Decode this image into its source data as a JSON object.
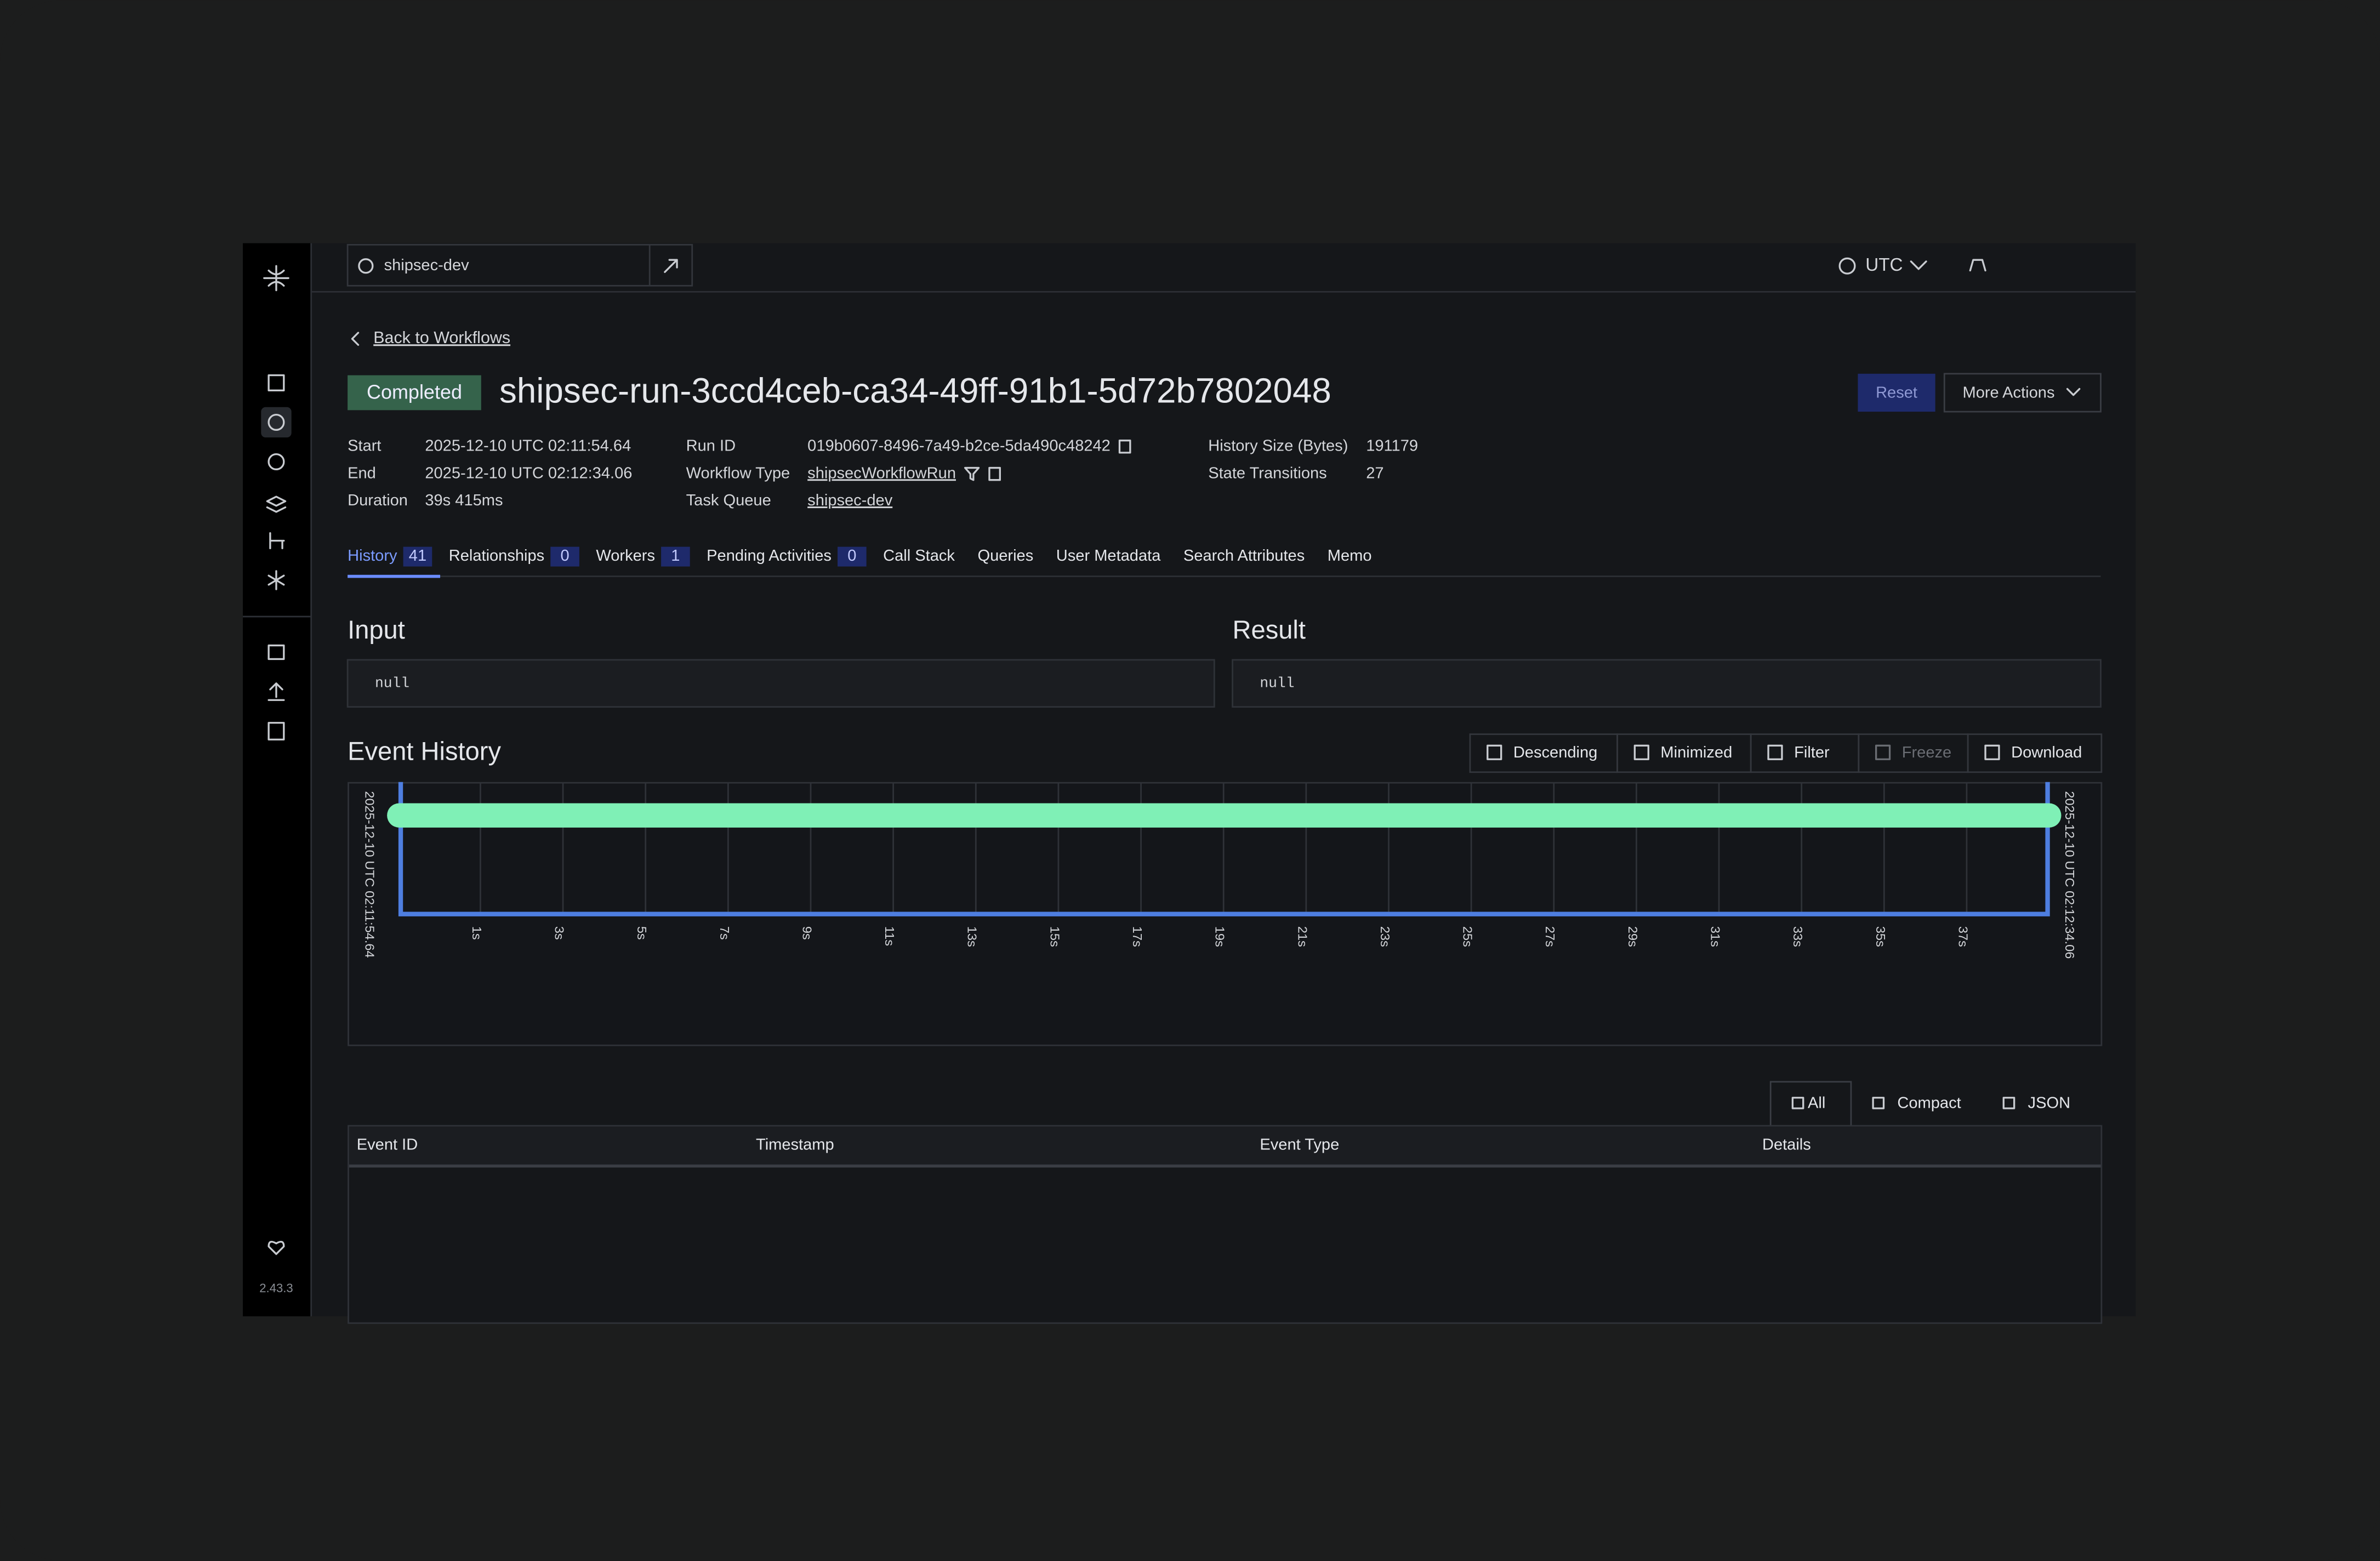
{
  "sidebar": {
    "version": "2.43.3"
  },
  "header": {
    "namespace": "shipsec-dev",
    "timezone": "UTC"
  },
  "workflow": {
    "back_link": "Back to Workflows",
    "status": "Completed",
    "title": "shipsec-run-3ccd4ceb-ca34-49ff-91b1-5d72b7802048",
    "actions": [
      "Reset",
      "More Actions"
    ],
    "details": [
      [
        {
          "label": "Start",
          "value": "2025-12-10 UTC 02:11:54.64"
        },
        {
          "label": "End",
          "value": "2025-12-10 UTC 02:12:34.06"
        },
        {
          "label": "Duration",
          "value": "39s 415ms"
        }
      ],
      [
        {
          "label": "Run ID",
          "value": "019b0607-8496-7a49-b2ce-5da490c48242"
        },
        {
          "label": "Workflow Type",
          "value": "shipsecWorkflowRun"
        },
        {
          "label": "Task Queue",
          "value": "shipsec-dev"
        }
      ],
      [
        {
          "label": "History Size (Bytes)",
          "value": "191179"
        },
        {
          "label": "State Transitions",
          "value": "27"
        }
      ]
    ]
  },
  "tabs": [
    {
      "label": "History",
      "count": 41
    },
    {
      "label": "Relationships",
      "count": 0
    },
    {
      "label": "Workers",
      "count": 1
    },
    {
      "label": "Pending Activities",
      "count": 0
    },
    {
      "label": "Call Stack"
    },
    {
      "label": "Queries"
    },
    {
      "label": "User Metadata"
    },
    {
      "label": "Search Attributes"
    },
    {
      "label": "Memo"
    }
  ],
  "input": {
    "heading": "Input",
    "value": "null"
  },
  "result": {
    "heading": "Result",
    "value": "null"
  },
  "event_history": {
    "heading": "Event History",
    "toolbar": [
      "Descending",
      "Minimized",
      "Filter",
      "Freeze",
      "Download"
    ],
    "timeline": {
      "start": "2025-12-10 UTC 02:11:54.64",
      "end": "2025-12-10 UTC 02:12:34.06",
      "ticks": [
        "1s",
        "3s",
        "5s",
        "7s",
        "9s",
        "11s",
        "13s",
        "15s",
        "17s",
        "19s",
        "21s",
        "23s",
        "25s",
        "27s",
        "29s",
        "31s",
        "33s",
        "35s",
        "37s"
      ]
    },
    "views": [
      "All",
      "Compact",
      "JSON"
    ],
    "columns": [
      "Event ID",
      "Timestamp",
      "Event Type",
      "Details"
    ]
  }
}
